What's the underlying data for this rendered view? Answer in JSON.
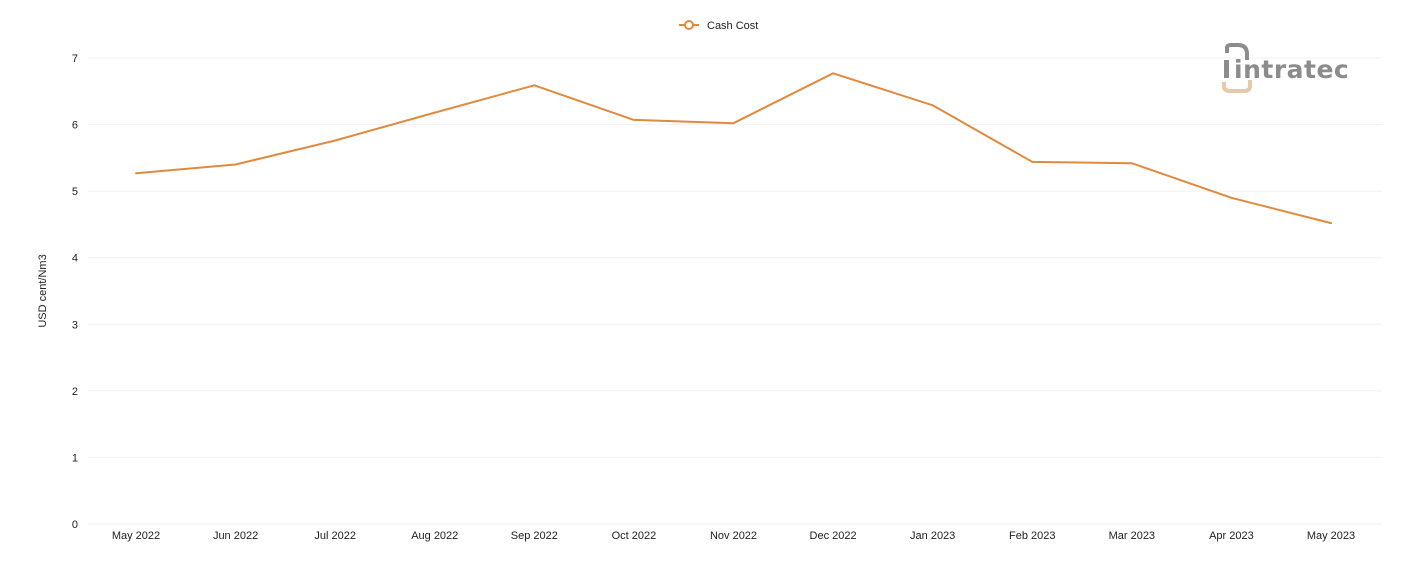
{
  "chart_data": {
    "type": "line",
    "categories": [
      "May 2022",
      "Jun 2022",
      "Jul 2022",
      "Aug 2022",
      "Sep 2022",
      "Oct 2022",
      "Nov 2022",
      "Dec 2022",
      "Jan 2023",
      "Feb 2023",
      "Mar 2023",
      "Apr 2023",
      "May 2023"
    ],
    "series": [
      {
        "name": "Cash Cost",
        "values": [
          5.27,
          5.4,
          5.76,
          6.18,
          6.59,
          6.07,
          6.02,
          6.77,
          6.29,
          5.44,
          5.42,
          4.9,
          4.52
        ],
        "color": "#e08a3e"
      }
    ],
    "ylabel": "USD cent/Nm3",
    "xlabel": "",
    "ylim": [
      0,
      7
    ],
    "yticks": [
      "0",
      "1",
      "2",
      "3",
      "4",
      "5",
      "6",
      "7"
    ],
    "grid": true,
    "legend_position": "top-center"
  },
  "logo": {
    "text": "intratec",
    "text_color": "#8c8c8c",
    "accent_color": "#e6c9a8"
  }
}
